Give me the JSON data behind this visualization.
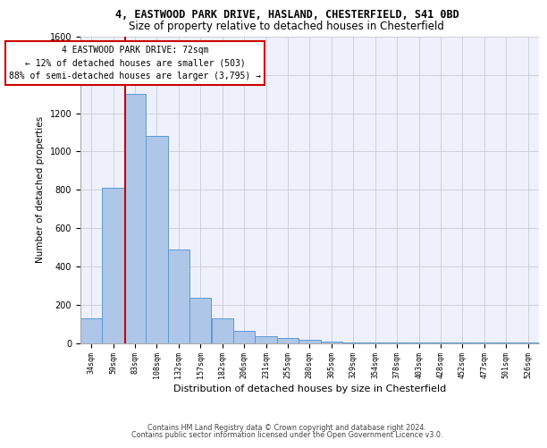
{
  "title_line1": "4, EASTWOOD PARK DRIVE, HASLAND, CHESTERFIELD, S41 0BD",
  "title_line2": "Size of property relative to detached houses in Chesterfield",
  "xlabel": "Distribution of detached houses by size in Chesterfield",
  "ylabel": "Number of detached properties",
  "footer_line1": "Contains HM Land Registry data © Crown copyright and database right 2024.",
  "footer_line2": "Contains public sector information licensed under the Open Government Licence v3.0.",
  "categories": [
    "34sqm",
    "59sqm",
    "83sqm",
    "108sqm",
    "132sqm",
    "157sqm",
    "182sqm",
    "206sqm",
    "231sqm",
    "255sqm",
    "280sqm",
    "305sqm",
    "329sqm",
    "354sqm",
    "378sqm",
    "403sqm",
    "428sqm",
    "452sqm",
    "477sqm",
    "501sqm",
    "526sqm"
  ],
  "bar_values": [
    130,
    810,
    1300,
    1080,
    490,
    235,
    130,
    65,
    35,
    25,
    15,
    8,
    3,
    1.5,
    0.8,
    0.4,
    0.2,
    0.1,
    0.05,
    0.05,
    0.03
  ],
  "bar_color": "#aec6e8",
  "bar_edge_color": "#5b9bd5",
  "annotation_text": "4 EASTWOOD PARK DRIVE: 72sqm\n← 12% of detached houses are smaller (503)\n88% of semi-detached houses are larger (3,795) →",
  "annotation_box_edgecolor": "#cc0000",
  "ylim_max": 1600,
  "yticks": [
    0,
    200,
    400,
    600,
    800,
    1000,
    1200,
    1400,
    1600
  ],
  "grid_color": "#c8ccd8",
  "bg_color": "#eef1fb",
  "title1_fontsize": 8.5,
  "title2_fontsize": 8.5,
  "ylabel_fontsize": 7.5,
  "xlabel_fontsize": 8.0,
  "tick_fontsize": 7.0,
  "ann_fontsize": 7.0,
  "footer_fontsize": 5.8
}
